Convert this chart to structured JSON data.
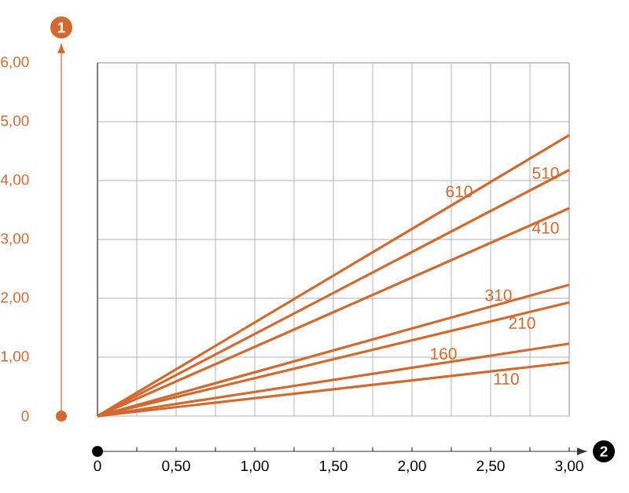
{
  "chart_data": {
    "type": "line",
    "xlabel": "2",
    "ylabel": "1",
    "x": [
      0,
      3
    ],
    "series": [
      {
        "name": "610",
        "color": "#d2692e",
        "values": [
          0,
          4.77
        ]
      },
      {
        "name": "510",
        "color": "#d2692e",
        "values": [
          0,
          4.18
        ]
      },
      {
        "name": "410",
        "color": "#d2692e",
        "values": [
          0,
          3.53
        ]
      },
      {
        "name": "310",
        "color": "#d2692e",
        "values": [
          0,
          2.23
        ]
      },
      {
        "name": "210",
        "color": "#d2692e",
        "values": [
          0,
          1.93
        ]
      },
      {
        "name": "160",
        "color": "#d2692e",
        "values": [
          0,
          1.23
        ]
      },
      {
        "name": "110",
        "color": "#d2692e",
        "values": [
          0,
          0.91
        ]
      }
    ],
    "xlim": [
      0,
      3
    ],
    "ylim": [
      0,
      6
    ],
    "xticks": [
      0,
      {
        "value": 0.5,
        "label": "0,50"
      },
      {
        "value": 1,
        "label": "1,00"
      },
      {
        "value": 1.5,
        "label": "1,50"
      },
      {
        "value": 2,
        "label": "2,00"
      },
      {
        "value": 2.5,
        "label": "2,50"
      },
      {
        "value": 3,
        "label": "3,00"
      }
    ],
    "yticks": [
      0,
      {
        "value": 1,
        "label": "1,00"
      },
      {
        "value": 2,
        "label": "2,00"
      },
      {
        "value": 3,
        "label": "3,00"
      },
      {
        "value": 4,
        "label": "4,00"
      },
      {
        "value": 5,
        "label": "5,00"
      },
      {
        "value": 6,
        "label": "6,00"
      }
    ],
    "grid": true,
    "legend": false,
    "marker": "none",
    "line_style": "solid"
  }
}
